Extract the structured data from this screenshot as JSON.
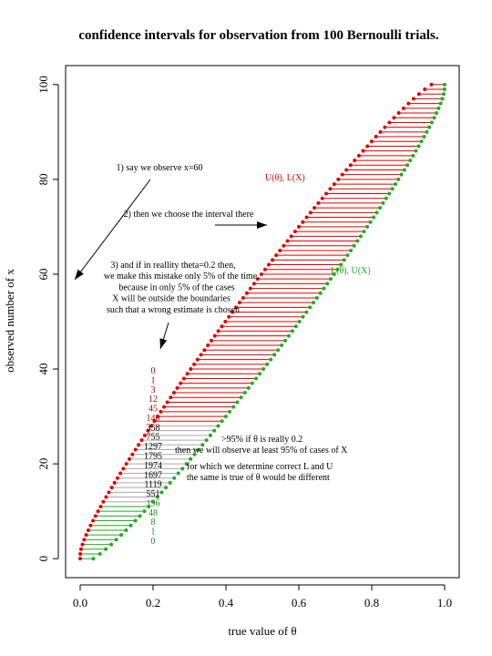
{
  "chart_data": {
    "type": "scatter",
    "title": "confidence intervals for observation from 100 Bernoulli trials.",
    "xlabel": "true value of θ",
    "ylabel": "observed number of x",
    "xlim": [
      -0.04,
      1.04
    ],
    "ylim": [
      -4,
      104
    ],
    "xticks": [
      "0.0",
      "0.2",
      "0.4",
      "0.6",
      "0.8",
      "1.0"
    ],
    "yticks": [
      "0",
      "20",
      "40",
      "60",
      "80",
      "100"
    ],
    "grid": false,
    "n_trials": 100,
    "series": [
      {
        "name": "U(θ), L(X)",
        "color": "#e00000",
        "description": "upper bound"
      },
      {
        "name": "L(θ), U(X)",
        "color": "#22aa22",
        "description": "lower bound"
      }
    ],
    "interval_colors": {
      "upper_region": "#e00000",
      "middle": "#aaaaaa",
      "lower_region": "#22aa22"
    },
    "count_column": {
      "x": 0.2,
      "values": [
        "0",
        "1",
        "3",
        "12",
        "45",
        "140",
        "358",
        "755",
        "1297",
        "1795",
        "1974",
        "1697",
        "1119",
        "551",
        "196",
        "48",
        "8",
        "1",
        "0"
      ],
      "red_count": 6,
      "green_count": 5
    },
    "annotations": [
      {
        "lines": [
          "1) say we observe x=60"
        ],
        "color": "#000000"
      },
      {
        "lines": [
          "2) then we choose the interval there"
        ],
        "color": "#000000"
      },
      {
        "lines": [
          "3) and if in reallity theta=0.2 then,",
          "we make this mistake only 5% of the time",
          "because in only 5% of the cases",
          "X will be outside the boundaries",
          "such that a wrong estimate is chosen"
        ],
        "color": "#000000"
      },
      {
        "lines": [
          ">95% if θ is really 0.2",
          "then we will observe at least 95% of cases of X"
        ],
        "color": "#000000"
      },
      {
        "lines": [
          "for which we determine correct L and U",
          "the same is true of θ would be different"
        ],
        "color": "#000000"
      }
    ]
  }
}
